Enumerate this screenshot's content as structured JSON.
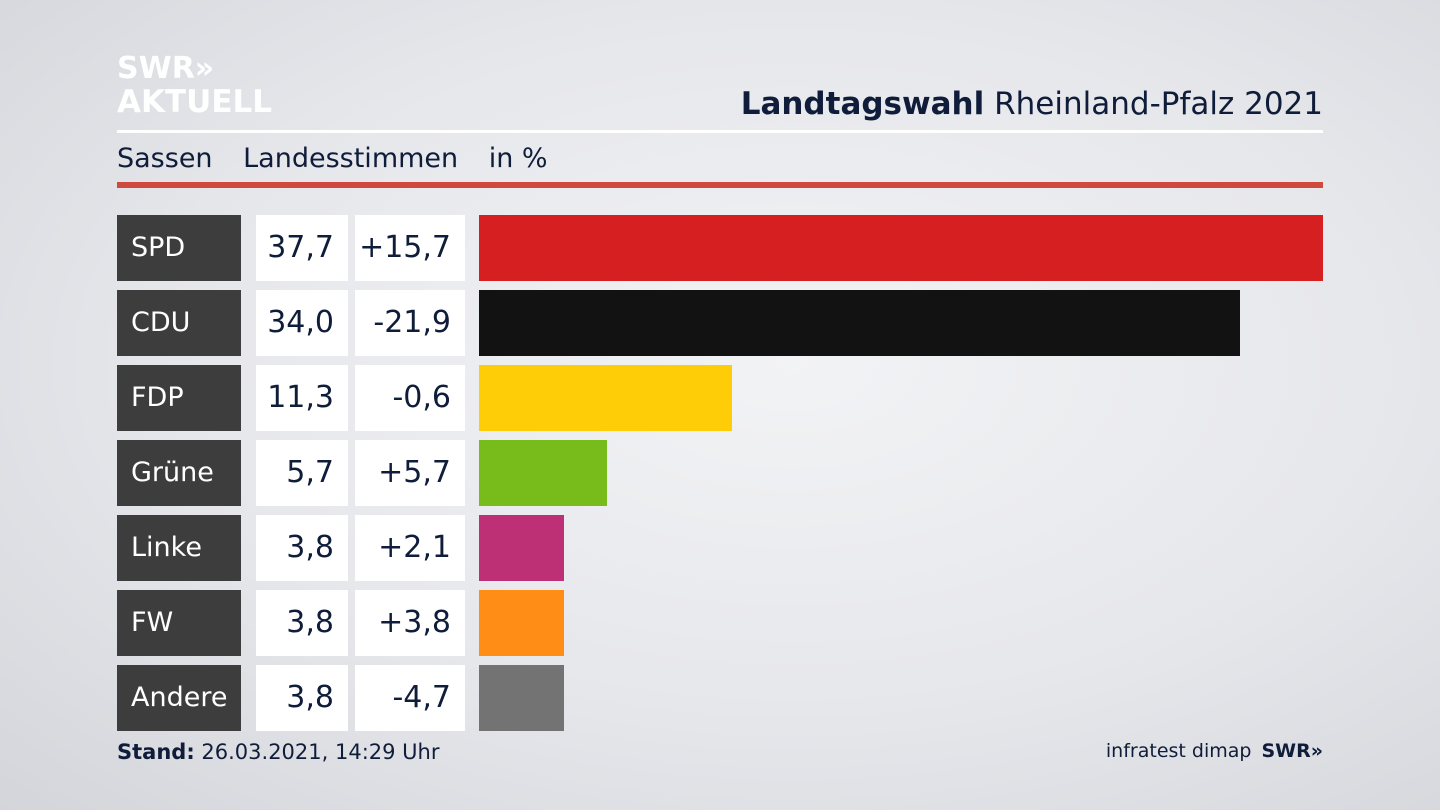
{
  "logo": {
    "line1": "SWR»",
    "line2": "AKTUELL"
  },
  "header": {
    "title_bold": "Landtagswahl",
    "title_rest": " Rheinland-Pfalz 2021"
  },
  "subtitle": {
    "place": "Sassen",
    "measure": "Landesstimmen",
    "unit": "in %"
  },
  "footer": {
    "stand_label": "Stand:",
    "stand_value": " 26.03.2021, 14:29 Uhr",
    "source": "infratest dimap",
    "brand": "SWR»"
  },
  "chart_data": {
    "type": "bar",
    "orientation": "horizontal",
    "categories": [
      "SPD",
      "CDU",
      "FDP",
      "Grüne",
      "Linke",
      "FW",
      "Andere"
    ],
    "values": [
      37.7,
      34.0,
      11.3,
      5.7,
      3.8,
      3.8,
      3.8
    ],
    "value_labels": [
      "37,7",
      "34,0",
      "11,3",
      "5,7",
      "3,8",
      "3,8",
      "3,8"
    ],
    "diff_labels": [
      "+15,7",
      "-21,9",
      "-0,6",
      "+5,7",
      "+2,1",
      "+3,8",
      "-4,7"
    ],
    "colors": [
      "#d51f20",
      "#121212",
      "#ffcc08",
      "#78bc1b",
      "#be3075",
      "#ff8d16",
      "#737373"
    ],
    "xlim": [
      0,
      37.7
    ]
  }
}
